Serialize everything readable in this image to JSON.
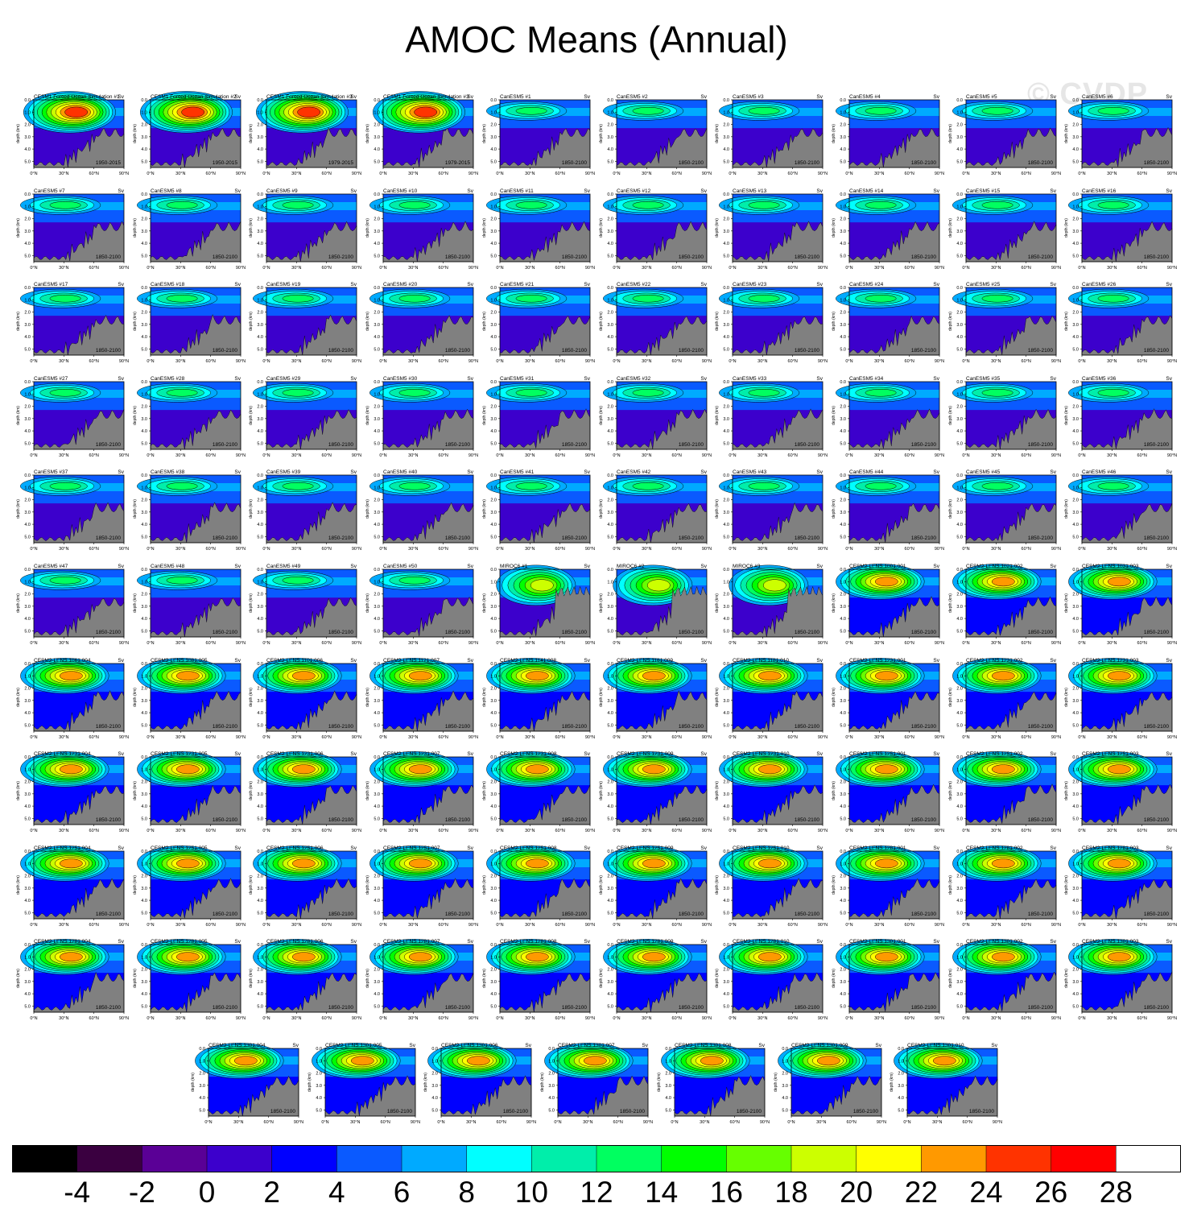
{
  "title": "AMOC Means (Annual)",
  "watermark": "© CVDP",
  "chart_data": {
    "type": "contour-panels",
    "variable": "AMOC",
    "units": "Sv",
    "ylabel": "depth (km)",
    "x_ticks": [
      "0°N",
      "30°N",
      "60°N",
      "90°N"
    ],
    "y_ticks": [
      "0.0",
      "1.0",
      "2.0",
      "3.0",
      "4.0",
      "5.0"
    ],
    "colorbar": {
      "labels": [
        "-4",
        "-2",
        "0",
        "2",
        "4",
        "6",
        "8",
        "10",
        "12",
        "14",
        "16",
        "18",
        "20",
        "22",
        "24",
        "26",
        "28"
      ],
      "colors": [
        "#000000",
        "#3a0040",
        "#5a0096",
        "#3c00cc",
        "#0000ff",
        "#0a5aff",
        "#00aaff",
        "#00ffff",
        "#00eeaa",
        "#00ff60",
        "#00ff00",
        "#66ff00",
        "#ccff00",
        "#ffff00",
        "#ff9900",
        "#ff3300",
        "#ff0000",
        "#ffffff"
      ]
    },
    "panels": [
      {
        "title": "CESM1 Forced Ocean Simulation #1",
        "units": "Sv",
        "period": "1950-2015",
        "family": "cesm1",
        "max": 24
      },
      {
        "title": "CESM1 Forced Ocean Simulation #2",
        "units": "Sv",
        "period": "1950-2015",
        "family": "cesm1",
        "max": 24
      },
      {
        "title": "CESM1 Forced Ocean Simulation #3",
        "units": "Sv",
        "period": "1979-2015",
        "family": "cesm1",
        "max": 24
      },
      {
        "title": "CESM1 Forced Ocean Simulation #3",
        "units": "Sv",
        "period": "1979-2015",
        "family": "cesm1",
        "max": 24
      },
      {
        "title": "CanESM5 #1",
        "units": "Sv",
        "period": "1850-2100",
        "family": "canesm5",
        "max": 12
      },
      {
        "title": "CanESM5 #2",
        "units": "Sv",
        "period": "1850-2100",
        "family": "canesm5",
        "max": 12
      },
      {
        "title": "CanESM5 #3",
        "units": "Sv",
        "period": "1850-2100",
        "family": "canesm5",
        "max": 12
      },
      {
        "title": "CanESM5 #4",
        "units": "Sv",
        "period": "1850-2100",
        "family": "canesm5",
        "max": 12
      },
      {
        "title": "CanESM5 #5",
        "units": "Sv",
        "period": "1850-2100",
        "family": "canesm5",
        "max": 12
      },
      {
        "title": "CanESM5 #6",
        "units": "Sv",
        "period": "1850-2100",
        "family": "canesm5",
        "max": 12
      },
      {
        "title": "CanESM5 #7",
        "units": "Sv",
        "period": "1850-2100",
        "family": "canesm5",
        "max": 12
      },
      {
        "title": "CanESM5 #8",
        "units": "Sv",
        "period": "1850-2100",
        "family": "canesm5",
        "max": 12
      },
      {
        "title": "CanESM5 #9",
        "units": "Sv",
        "period": "1850-2100",
        "family": "canesm5",
        "max": 12
      },
      {
        "title": "CanESM5 #10",
        "units": "Sv",
        "period": "1850-2100",
        "family": "canesm5",
        "max": 12
      },
      {
        "title": "CanESM5 #11",
        "units": "Sv",
        "period": "1850-2100",
        "family": "canesm5",
        "max": 12
      },
      {
        "title": "CanESM5 #12",
        "units": "Sv",
        "period": "1850-2100",
        "family": "canesm5",
        "max": 12
      },
      {
        "title": "CanESM5 #13",
        "units": "Sv",
        "period": "1850-2100",
        "family": "canesm5",
        "max": 12
      },
      {
        "title": "CanESM5 #14",
        "units": "Sv",
        "period": "1850-2100",
        "family": "canesm5",
        "max": 12
      },
      {
        "title": "CanESM5 #15",
        "units": "Sv",
        "period": "1850-2100",
        "family": "canesm5",
        "max": 12
      },
      {
        "title": "CanESM5 #16",
        "units": "Sv",
        "period": "1850-2100",
        "family": "canesm5",
        "max": 12
      },
      {
        "title": "CanESM5 #17",
        "units": "Sv",
        "period": "1850-2100",
        "family": "canesm5",
        "max": 12
      },
      {
        "title": "CanESM5 #18",
        "units": "Sv",
        "period": "1850-2100",
        "family": "canesm5",
        "max": 12
      },
      {
        "title": "CanESM5 #19",
        "units": "Sv",
        "period": "1850-2100",
        "family": "canesm5",
        "max": 12
      },
      {
        "title": "CanESM5 #20",
        "units": "Sv",
        "period": "1850-2100",
        "family": "canesm5",
        "max": 12
      },
      {
        "title": "CanESM5 #21",
        "units": "Sv",
        "period": "1850-2100",
        "family": "canesm5",
        "max": 12
      },
      {
        "title": "CanESM5 #22",
        "units": "Sv",
        "period": "1850-2100",
        "family": "canesm5",
        "max": 12
      },
      {
        "title": "CanESM5 #23",
        "units": "Sv",
        "period": "1850-2100",
        "family": "canesm5",
        "max": 12
      },
      {
        "title": "CanESM5 #24",
        "units": "Sv",
        "period": "1850-2100",
        "family": "canesm5",
        "max": 12
      },
      {
        "title": "CanESM5 #25",
        "units": "Sv",
        "period": "1850-2100",
        "family": "canesm5",
        "max": 12
      },
      {
        "title": "CanESM5 #26",
        "units": "Sv",
        "period": "1850-2100",
        "family": "canesm5",
        "max": 12
      },
      {
        "title": "CanESM5 #27",
        "units": "Sv",
        "period": "1850-2100",
        "family": "canesm5",
        "max": 12
      },
      {
        "title": "CanESM5 #28",
        "units": "Sv",
        "period": "1850-2100",
        "family": "canesm5",
        "max": 12
      },
      {
        "title": "CanESM5 #29",
        "units": "Sv",
        "period": "1850-2100",
        "family": "canesm5",
        "max": 12
      },
      {
        "title": "CanESM5 #30",
        "units": "Sv",
        "period": "1850-2100",
        "family": "canesm5",
        "max": 12
      },
      {
        "title": "CanESM5 #31",
        "units": "Sv",
        "period": "1850-2100",
        "family": "canesm5",
        "max": 12
      },
      {
        "title": "CanESM5 #32",
        "units": "Sv",
        "period": "1850-2100",
        "family": "canesm5",
        "max": 12
      },
      {
        "title": "CanESM5 #33",
        "units": "Sv",
        "period": "1850-2100",
        "family": "canesm5",
        "max": 12
      },
      {
        "title": "CanESM5 #34",
        "units": "Sv",
        "period": "1850-2100",
        "family": "canesm5",
        "max": 12
      },
      {
        "title": "CanESM5 #35",
        "units": "Sv",
        "period": "1850-2100",
        "family": "canesm5",
        "max": 12
      },
      {
        "title": "CanESM5 #36",
        "units": "Sv",
        "period": "1850-2100",
        "family": "canesm5",
        "max": 12
      },
      {
        "title": "CanESM5 #37",
        "units": "Sv",
        "period": "1850-2100",
        "family": "canesm5",
        "max": 12
      },
      {
        "title": "CanESM5 #38",
        "units": "Sv",
        "period": "1850-2100",
        "family": "canesm5",
        "max": 12
      },
      {
        "title": "CanESM5 #39",
        "units": "Sv",
        "period": "1850-2100",
        "family": "canesm5",
        "max": 12
      },
      {
        "title": "CanESM5 #40",
        "units": "Sv",
        "period": "1850-2100",
        "family": "canesm5",
        "max": 12
      },
      {
        "title": "CanESM5 #41",
        "units": "Sv",
        "period": "1850-2100",
        "family": "canesm5",
        "max": 12
      },
      {
        "title": "CanESM5 #42",
        "units": "Sv",
        "period": "1850-2100",
        "family": "canesm5",
        "max": 12
      },
      {
        "title": "CanESM5 #43",
        "units": "Sv",
        "period": "1850-2100",
        "family": "canesm5",
        "max": 12
      },
      {
        "title": "CanESM5 #44",
        "units": "Sv",
        "period": "1850-2100",
        "family": "canesm5",
        "max": 12
      },
      {
        "title": "CanESM5 #45",
        "units": "Sv",
        "period": "1850-2100",
        "family": "canesm5",
        "max": 12
      },
      {
        "title": "CanESM5 #46",
        "units": "Sv",
        "period": "1850-2100",
        "family": "canesm5",
        "max": 12
      },
      {
        "title": "CanESM5 #47",
        "units": "Sv",
        "period": "1850-2100",
        "family": "canesm5",
        "max": 12
      },
      {
        "title": "CanESM5 #48",
        "units": "Sv",
        "period": "1850-2100",
        "family": "canesm5",
        "max": 12
      },
      {
        "title": "CanESM5 #49",
        "units": "Sv",
        "period": "1850-2100",
        "family": "canesm5",
        "max": 12
      },
      {
        "title": "CanESM5 #50",
        "units": "Sv",
        "period": "1850-2100",
        "family": "canesm5",
        "max": 12
      },
      {
        "title": "MIROC6 #1",
        "units": "Sv",
        "period": "1850-2100",
        "family": "miroc6",
        "max": 18
      },
      {
        "title": "MIROC6 #2",
        "units": "Sv",
        "period": "1850-2100",
        "family": "miroc6",
        "max": 18
      },
      {
        "title": "MIROC6 #3",
        "units": "Sv",
        "period": "1850-2100",
        "family": "miroc6",
        "max": 18
      },
      {
        "title": "CESM2-LENS 1001.001",
        "units": "Sv",
        "period": "1850-2100",
        "family": "cesm2",
        "max": 22
      },
      {
        "title": "CESM2-LENS 1021.002",
        "units": "Sv",
        "period": "1850-2100",
        "family": "cesm2",
        "max": 22
      },
      {
        "title": "CESM2-LENS 1031.003",
        "units": "Sv",
        "period": "1850-2100",
        "family": "cesm2",
        "max": 22
      },
      {
        "title": "CESM2-LENS 1061.004",
        "units": "Sv",
        "period": "1850-2100",
        "family": "cesm2",
        "max": 22
      },
      {
        "title": "CESM2-LENS 1081.005",
        "units": "Sv",
        "period": "1850-2100",
        "family": "cesm2",
        "max": 22
      },
      {
        "title": "CESM2-LENS 1101.006",
        "units": "Sv",
        "period": "1850-2100",
        "family": "cesm2",
        "max": 22
      },
      {
        "title": "CESM2-LENS 1121.007",
        "units": "Sv",
        "period": "1850-2100",
        "family": "cesm2",
        "max": 22
      },
      {
        "title": "CESM2-LENS 1141.008",
        "units": "Sv",
        "period": "1850-2100",
        "family": "cesm2",
        "max": 22
      },
      {
        "title": "CESM2-LENS 1161.009",
        "units": "Sv",
        "period": "1850-2100",
        "family": "cesm2",
        "max": 22
      },
      {
        "title": "CESM2-LENS 1181.010",
        "units": "Sv",
        "period": "1850-2100",
        "family": "cesm2",
        "max": 22
      },
      {
        "title": "CESM2-LENS 1231.001",
        "units": "Sv",
        "period": "1850-2100",
        "family": "cesm2",
        "max": 22
      },
      {
        "title": "CESM2-LENS 1231.002",
        "units": "Sv",
        "period": "1850-2100",
        "family": "cesm2",
        "max": 22
      },
      {
        "title": "CESM2-LENS 1231.003",
        "units": "Sv",
        "period": "1850-2100",
        "family": "cesm2",
        "max": 22
      },
      {
        "title": "CESM2-LENS 1231.004",
        "units": "Sv",
        "period": "1850-2100",
        "family": "cesm2",
        "max": 22
      },
      {
        "title": "CESM2-LENS 1231.005",
        "units": "Sv",
        "period": "1850-2100",
        "family": "cesm2",
        "max": 22
      },
      {
        "title": "CESM2-LENS 1231.006",
        "units": "Sv",
        "period": "1850-2100",
        "family": "cesm2",
        "max": 22
      },
      {
        "title": "CESM2-LENS 1231.007",
        "units": "Sv",
        "period": "1850-2100",
        "family": "cesm2",
        "max": 22
      },
      {
        "title": "CESM2-LENS 1231.008",
        "units": "Sv",
        "period": "1850-2100",
        "family": "cesm2",
        "max": 22
      },
      {
        "title": "CESM2-LENS 1231.009",
        "units": "Sv",
        "period": "1850-2100",
        "family": "cesm2",
        "max": 22
      },
      {
        "title": "CESM2-LENS 1231.010",
        "units": "Sv",
        "period": "1850-2100",
        "family": "cesm2",
        "max": 22
      },
      {
        "title": "CESM2-LENS 1251.001",
        "units": "Sv",
        "period": "1850-2100",
        "family": "cesm2",
        "max": 22
      },
      {
        "title": "CESM2-LENS 1251.002",
        "units": "Sv",
        "period": "1850-2100",
        "family": "cesm2",
        "max": 22
      },
      {
        "title": "CESM2-LENS 1251.003",
        "units": "Sv",
        "period": "1850-2100",
        "family": "cesm2",
        "max": 22
      },
      {
        "title": "CESM2-LENS 1251.004",
        "units": "Sv",
        "period": "1850-2100",
        "family": "cesm2",
        "max": 22
      },
      {
        "title": "CESM2-LENS 1251.005",
        "units": "Sv",
        "period": "1850-2100",
        "family": "cesm2",
        "max": 22
      },
      {
        "title": "CESM2-LENS 1251.006",
        "units": "Sv",
        "period": "1850-2100",
        "family": "cesm2",
        "max": 22
      },
      {
        "title": "CESM2-LENS 1251.007",
        "units": "Sv",
        "period": "1850-2100",
        "family": "cesm2",
        "max": 22
      },
      {
        "title": "CESM2-LENS 1251.008",
        "units": "Sv",
        "period": "1850-2100",
        "family": "cesm2",
        "max": 22
      },
      {
        "title": "CESM2-LENS 1251.009",
        "units": "Sv",
        "period": "1850-2100",
        "family": "cesm2",
        "max": 22
      },
      {
        "title": "CESM2-LENS 1251.010",
        "units": "Sv",
        "period": "1850-2100",
        "family": "cesm2",
        "max": 22
      },
      {
        "title": "CESM2-LENS 1281.001",
        "units": "Sv",
        "period": "1850-2100",
        "family": "cesm2",
        "max": 22
      },
      {
        "title": "CESM2-LENS 1281.002",
        "units": "Sv",
        "period": "1850-2100",
        "family": "cesm2",
        "max": 22
      },
      {
        "title": "CESM2-LENS 1281.003",
        "units": "Sv",
        "period": "1850-2100",
        "family": "cesm2",
        "max": 22
      },
      {
        "title": "CESM2-LENS 1281.004",
        "units": "Sv",
        "period": "1850-2100",
        "family": "cesm2",
        "max": 22
      },
      {
        "title": "CESM2-LENS 1281.005",
        "units": "Sv",
        "period": "1850-2100",
        "family": "cesm2",
        "max": 22
      },
      {
        "title": "CESM2-LENS 1281.006",
        "units": "Sv",
        "period": "1850-2100",
        "family": "cesm2",
        "max": 22
      },
      {
        "title": "CESM2-LENS 1281.007",
        "units": "Sv",
        "period": "1850-2100",
        "family": "cesm2",
        "max": 22
      },
      {
        "title": "CESM2-LENS 1281.008",
        "units": "Sv",
        "period": "1850-2100",
        "family": "cesm2",
        "max": 22
      },
      {
        "title": "CESM2-LENS 1281.009",
        "units": "Sv",
        "period": "1850-2100",
        "family": "cesm2",
        "max": 22
      },
      {
        "title": "CESM2-LENS 1281.010",
        "units": "Sv",
        "period": "1850-2100",
        "family": "cesm2",
        "max": 22
      },
      {
        "title": "CESM2-LENS 1301.001",
        "units": "Sv",
        "period": "1850-2100",
        "family": "cesm2",
        "max": 22
      },
      {
        "title": "CESM2-LENS 1301.002",
        "units": "Sv",
        "period": "1850-2100",
        "family": "cesm2",
        "max": 22
      },
      {
        "title": "CESM2-LENS 1301.003",
        "units": "Sv",
        "period": "1850-2100",
        "family": "cesm2",
        "max": 22
      },
      {
        "title": "CESM2-LENS 1301.004",
        "units": "Sv",
        "period": "1850-2100",
        "family": "cesm2",
        "max": 22
      },
      {
        "title": "CESM2-LENS 1301.005",
        "units": "Sv",
        "period": "1850-2100",
        "family": "cesm2",
        "max": 22
      },
      {
        "title": "CESM2-LENS 1301.006",
        "units": "Sv",
        "period": "1850-2100",
        "family": "cesm2",
        "max": 22
      },
      {
        "title": "CESM2-LENS 1301.007",
        "units": "Sv",
        "period": "1850-2100",
        "family": "cesm2",
        "max": 22
      },
      {
        "title": "CESM2-LENS 1301.008",
        "units": "Sv",
        "period": "1850-2100",
        "family": "cesm2",
        "max": 22
      },
      {
        "title": "CESM2-LENS 1301.009",
        "units": "Sv",
        "period": "1850-2100",
        "family": "cesm2",
        "max": 22
      },
      {
        "title": "CESM2-LENS 1301.010",
        "units": "Sv",
        "period": "1850-2100",
        "family": "cesm2",
        "max": 22
      }
    ]
  }
}
